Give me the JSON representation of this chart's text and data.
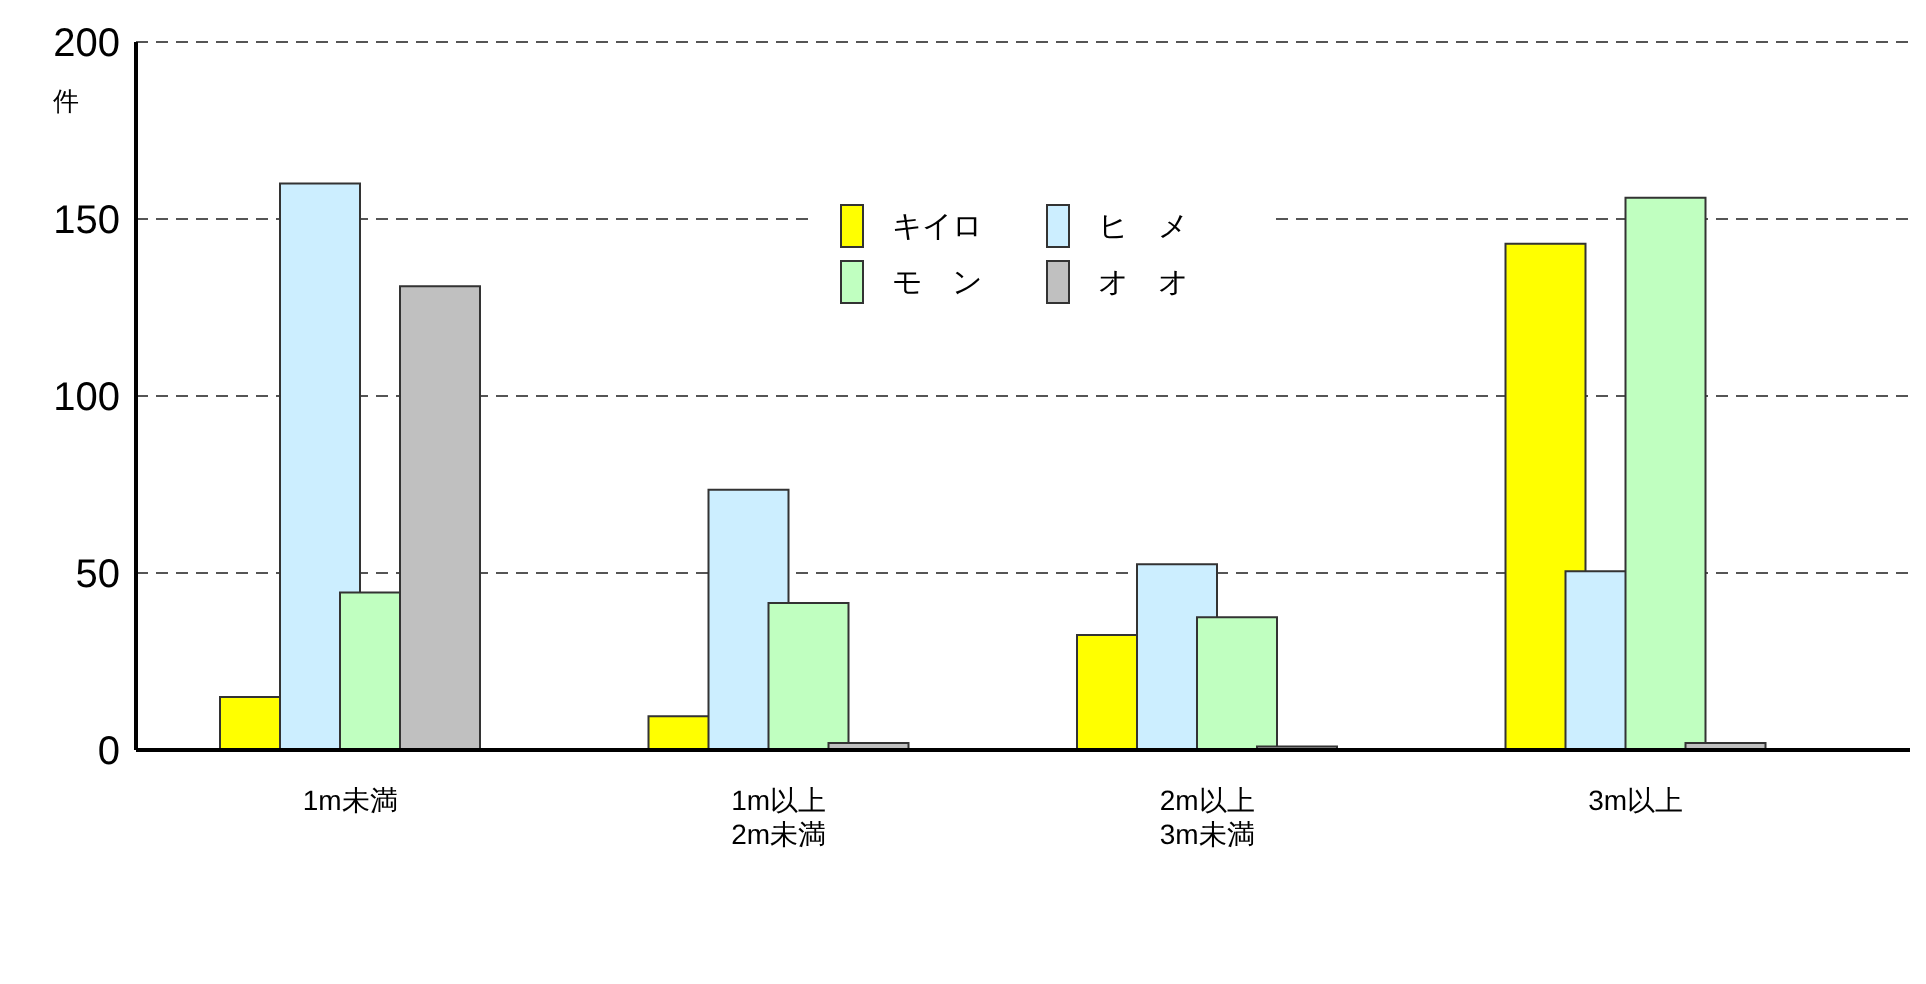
{
  "chart_data": {
    "type": "bar",
    "ylabel": "件",
    "categories": [
      "1m未満",
      "1m以上\n2m未満",
      "2m以上\n3m未満",
      "3m以上"
    ],
    "series": [
      {
        "name": "キイロ",
        "color": "#ffff00",
        "values": [
          15,
          9.5,
          32.5,
          143
        ]
      },
      {
        "name": "ヒ　メ",
        "color": "#cceeff",
        "values": [
          160,
          73.5,
          52.5,
          50.5
        ]
      },
      {
        "name": "モ　ン",
        "color": "#c0ffc0",
        "values": [
          44.5,
          41.5,
          37.5,
          156
        ]
      },
      {
        "name": "オ　オ",
        "color": "#c0c0c0",
        "values": [
          131,
          2,
          1,
          2
        ]
      }
    ],
    "ylim": [
      0,
      200
    ],
    "yticks": [
      0,
      50,
      100,
      150,
      200
    ],
    "grid": "y",
    "legend": "top"
  }
}
